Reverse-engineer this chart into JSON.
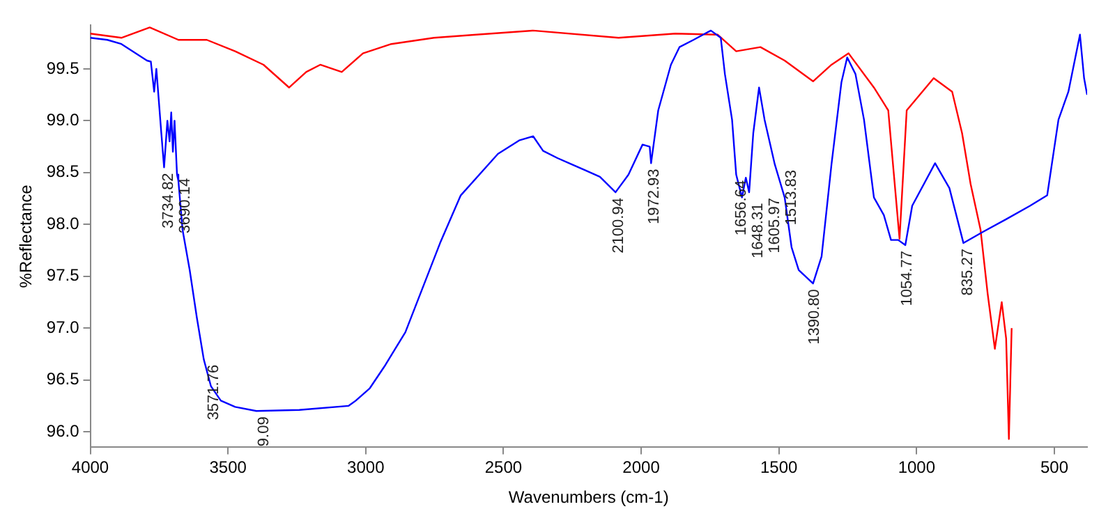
{
  "chart_data": {
    "type": "line",
    "xlabel": "Wavenumbers (cm-1)",
    "ylabel": "%Reflectance",
    "xlim": [
      4000,
      381
    ],
    "xticks": [
      4000,
      3500,
      3000,
      2500,
      2000,
      1500,
      1000,
      500
    ],
    "ylim": [
      95.85,
      99.92
    ],
    "yticks": [
      {
        "value": 96,
        "label": "96.0"
      },
      96.5,
      {
        "value": 97,
        "label": "97.0"
      },
      97.5,
      {
        "value": 98,
        "label": "98.0"
      },
      98.5,
      {
        "value": 99,
        "label": "99.0"
      },
      99.5
    ],
    "grid": false,
    "legend": false,
    "marker": "none",
    "line_style": "solid",
    "series": [
      {
        "color": "#0000ff",
        "x": [
          4000,
          3938,
          3887,
          3794,
          3780,
          3768,
          3760,
          3742,
          3732,
          3720,
          3712,
          3706,
          3700,
          3694,
          3685,
          3680,
          3665,
          3639,
          3613,
          3588,
          3562,
          3526,
          3474,
          3397,
          3241,
          3062,
          3036,
          2985,
          2932,
          2856,
          2730,
          2655,
          2520,
          2443,
          2392,
          2356,
          2304,
          2253,
          2201,
          2150,
          2093,
          2046,
          1995,
          1969,
          1964,
          1938,
          1892,
          1861,
          1810,
          1747,
          1711,
          1696,
          1670,
          1655,
          1634,
          1620,
          1608,
          1593,
          1572,
          1552,
          1515,
          1479,
          1454,
          1428,
          1376,
          1345,
          1309,
          1273,
          1252,
          1222,
          1191,
          1155,
          1119,
          1093,
          1067,
          1041,
          1016,
          933,
          881,
          830,
          758,
          675,
          588,
          526,
          485,
          449,
          407,
          392,
          381
        ],
        "values": [
          99.8,
          99.78,
          99.74,
          99.58,
          99.57,
          99.28,
          99.5,
          98.88,
          98.55,
          99.0,
          98.8,
          99.08,
          98.7,
          99.0,
          98.48,
          98.42,
          97.95,
          97.56,
          97.1,
          96.7,
          96.44,
          96.3,
          96.24,
          96.2,
          96.21,
          96.25,
          96.3,
          96.42,
          96.63,
          96.96,
          97.82,
          98.28,
          98.68,
          98.81,
          98.85,
          98.71,
          98.64,
          98.58,
          98.52,
          98.46,
          98.31,
          98.48,
          98.77,
          98.75,
          98.59,
          99.1,
          99.54,
          99.71,
          99.78,
          99.87,
          99.8,
          99.45,
          99.01,
          98.48,
          98.26,
          98.45,
          98.31,
          98.88,
          99.32,
          99.01,
          98.58,
          98.26,
          97.78,
          97.56,
          97.43,
          97.69,
          98.58,
          99.37,
          99.61,
          99.45,
          99.01,
          98.26,
          98.09,
          97.85,
          97.85,
          97.8,
          98.18,
          98.59,
          98.35,
          97.82,
          97.93,
          98.05,
          98.18,
          98.28,
          99.01,
          99.28,
          99.83,
          99.41,
          99.25
        ]
      },
      {
        "color": "#ff0000",
        "x": [
          4000,
          3887,
          3784,
          3680,
          3577,
          3474,
          3371,
          3278,
          3216,
          3165,
          3087,
          3010,
          2907,
          2752,
          2598,
          2392,
          2082,
          1876,
          1722,
          1655,
          1567,
          1479,
          1376,
          1309,
          1247,
          1155,
          1103,
          1062,
          1036,
          938,
          871,
          835,
          804,
          768,
          742,
          716,
          691,
          675,
          665,
          655
        ],
        "values": [
          99.84,
          99.8,
          99.9,
          99.78,
          99.78,
          99.67,
          99.54,
          99.32,
          99.47,
          99.54,
          99.47,
          99.65,
          99.74,
          99.8,
          99.83,
          99.87,
          99.8,
          99.84,
          99.83,
          99.67,
          99.71,
          99.58,
          99.38,
          99.54,
          99.65,
          99.32,
          99.1,
          97.86,
          99.1,
          99.41,
          99.28,
          98.88,
          98.39,
          97.95,
          97.33,
          96.8,
          97.25,
          96.9,
          95.93,
          97.0
        ]
      }
    ],
    "annotations": [
      {
        "text": "3734.82",
        "x": 3734.82,
        "y": 98.55
      },
      {
        "text": "3690.14",
        "x": 3690.14,
        "y": 98.5
      },
      {
        "text": "3571.76",
        "x": 3571.76,
        "y": 96.7
      },
      {
        "text": "9.09",
        "x": 3389.09,
        "y": 96.2
      },
      {
        "text": "2100.94",
        "x": 2100.94,
        "y": 98.31
      },
      {
        "text": "1972.93",
        "x": 1972.93,
        "y": 98.59
      },
      {
        "text": "1656.64",
        "x": 1656.64,
        "y": 98.48
      },
      {
        "text": "1648.31",
        "x": 1648.31,
        "y": 98.26
      },
      {
        "text": "1605.97",
        "x": 1605.97,
        "y": 98.31
      },
      {
        "text": "1513.83",
        "x": 1513.83,
        "y": 98.58
      },
      {
        "text": "1390.80",
        "x": 1390.8,
        "y": 97.43
      },
      {
        "text": "1054.77",
        "x": 1054.77,
        "y": 97.8
      },
      {
        "text": "835.27",
        "x": 835.27,
        "y": 97.82
      }
    ]
  }
}
